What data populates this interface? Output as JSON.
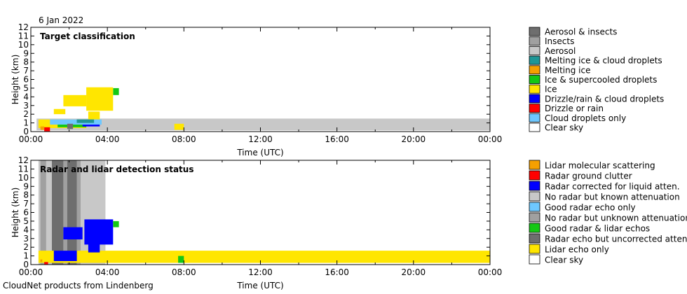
{
  "date_label": "6 Jan 2022",
  "footer": "CloudNet products from Lindenberg",
  "chart_data": [
    {
      "type": "heatmap",
      "title": "Target classification",
      "xlabel": "Time (UTC)",
      "ylabel": "Height (km)",
      "xlim": [
        "00:00",
        "24:00"
      ],
      "ylim": [
        0,
        12
      ],
      "x_ticks": [
        "00:00",
        "04:00",
        "08:00",
        "12:00",
        "16:00",
        "20:00",
        "00:00"
      ],
      "y_ticks": [
        0,
        1,
        2,
        3,
        4,
        5,
        6,
        7,
        8,
        9,
        10,
        11,
        12
      ],
      "legend": [
        {
          "label": "Aerosol & insects",
          "color": "#6e6e6e"
        },
        {
          "label": "Insects",
          "color": "#a0a0a0"
        },
        {
          "label": "Aerosol",
          "color": "#c8c8c8"
        },
        {
          "label": "Melting ice & cloud droplets",
          "color": "#1e9696"
        },
        {
          "label": "Melting ice",
          "color": "#f5a000"
        },
        {
          "label": "Ice & supercooled droplets",
          "color": "#14c814"
        },
        {
          "label": "Ice",
          "color": "#ffe600"
        },
        {
          "label": "Drizzle/rain & cloud droplets",
          "color": "#0000ff"
        },
        {
          "label": "Drizzle or rain",
          "color": "#ff0000"
        },
        {
          "label": "Cloud droplets only",
          "color": "#6ec8ff"
        },
        {
          "label": "Clear sky",
          "color": "#ffffff"
        }
      ],
      "regions": [
        {
          "class": "Aerosol",
          "color": "#c8c8c8",
          "t0": 0.3,
          "t1": 24.0,
          "h0": 0.15,
          "h1": 1.5
        },
        {
          "class": "Ice",
          "color": "#ffe600",
          "t0": 2.9,
          "t1": 4.3,
          "h0": 2.4,
          "h1": 5.1
        },
        {
          "class": "Ice",
          "color": "#ffe600",
          "t0": 1.7,
          "t1": 2.9,
          "h0": 2.9,
          "h1": 4.2
        },
        {
          "class": "Ice",
          "color": "#ffe600",
          "t0": 1.2,
          "t1": 1.8,
          "h0": 2.0,
          "h1": 2.6
        },
        {
          "class": "Ice",
          "color": "#ffe600",
          "t0": 3.0,
          "t1": 3.6,
          "h0": 1.4,
          "h1": 2.3
        },
        {
          "class": "Ice",
          "color": "#ffe600",
          "t0": 0.4,
          "t1": 2.9,
          "h0": 0.4,
          "h1": 1.4
        },
        {
          "class": "Ice",
          "color": "#ffe600",
          "t0": 7.5,
          "t1": 8.0,
          "h0": 0.2,
          "h1": 0.9
        },
        {
          "class": "Ice & supercooled droplets",
          "color": "#14c814",
          "t0": 4.3,
          "t1": 4.6,
          "h0": 4.2,
          "h1": 5.0
        },
        {
          "class": "Ice & supercooled droplets",
          "color": "#14c814",
          "t0": 1.4,
          "t1": 2.9,
          "h0": 0.5,
          "h1": 1.3
        },
        {
          "class": "Drizzle or rain",
          "color": "#ff0000",
          "t0": 0.7,
          "t1": 1.0,
          "h0": 0.0,
          "h1": 0.5
        },
        {
          "class": "Drizzle/rain & cloud droplets",
          "color": "#0000ff",
          "t0": 2.7,
          "t1": 3.6,
          "h0": 0.6,
          "h1": 1.3
        },
        {
          "class": "Cloud droplets only",
          "color": "#6ec8ff",
          "t0": 1.0,
          "t1": 3.7,
          "h0": 0.8,
          "h1": 1.4
        },
        {
          "class": "Melting ice & cloud droplets",
          "color": "#1e9696",
          "t0": 2.4,
          "t1": 3.3,
          "h0": 1.0,
          "h1": 1.4
        },
        {
          "class": "Melting ice",
          "color": "#f5a000",
          "t0": 0.5,
          "t1": 0.7,
          "h0": 0.2,
          "h1": 0.6
        },
        {
          "class": "Aerosol & insects",
          "color": "#6e6e6e",
          "t0": 1.9,
          "t1": 2.2,
          "h0": 0.3,
          "h1": 0.9
        }
      ]
    },
    {
      "type": "heatmap",
      "title": "Radar and lidar detection status",
      "xlabel": "Time (UTC)",
      "ylabel": "Height (km)",
      "xlim": [
        "00:00",
        "24:00"
      ],
      "ylim": [
        0,
        12
      ],
      "x_ticks": [
        "00:00",
        "04:00",
        "08:00",
        "12:00",
        "16:00",
        "20:00",
        "00:00"
      ],
      "y_ticks": [
        0,
        1,
        2,
        3,
        4,
        5,
        6,
        7,
        8,
        9,
        10,
        11,
        12
      ],
      "legend": [
        {
          "label": "Lidar molecular scattering",
          "color": "#f5a000"
        },
        {
          "label": "Radar ground clutter",
          "color": "#ff0000"
        },
        {
          "label": "Radar corrected for liquid atten.",
          "color": "#0000ff"
        },
        {
          "label": "No radar but known attenuation",
          "color": "#c8c8c8"
        },
        {
          "label": "Good radar echo only",
          "color": "#6ec8ff"
        },
        {
          "label": "No radar but unknown attenuation",
          "color": "#a0a0a0"
        },
        {
          "label": "Good radar & lidar echos",
          "color": "#14c814"
        },
        {
          "label": "Radar echo but uncorrected atten.",
          "color": "#6e6e6e"
        },
        {
          "label": "Lidar echo only",
          "color": "#ffe600"
        },
        {
          "label": "Clear sky",
          "color": "#ffffff"
        }
      ],
      "regions": [
        {
          "class": "No radar but known attenuation",
          "color": "#c8c8c8",
          "t0": 0.4,
          "t1": 3.9,
          "h0": 0.0,
          "h1": 12.0
        },
        {
          "class": "No radar but unknown attenuation",
          "color": "#a0a0a0",
          "t0": 0.5,
          "t1": 0.8,
          "h0": 0.0,
          "h1": 12.0
        },
        {
          "class": "Radar echo but uncorrected atten.",
          "color": "#6e6e6e",
          "t0": 1.1,
          "t1": 1.7,
          "h0": 0.0,
          "h1": 12.0
        },
        {
          "class": "No radar but unknown attenuation",
          "color": "#a0a0a0",
          "t0": 1.7,
          "t1": 1.9,
          "h0": 0.0,
          "h1": 12.0
        },
        {
          "class": "Radar echo but uncorrected atten.",
          "color": "#6e6e6e",
          "t0": 1.9,
          "t1": 2.4,
          "h0": 0.0,
          "h1": 12.0
        },
        {
          "class": "No radar but unknown attenuation",
          "color": "#a0a0a0",
          "t0": 2.4,
          "t1": 2.6,
          "h0": 0.0,
          "h1": 12.0
        },
        {
          "class": "Lidar echo only",
          "color": "#ffe600",
          "t0": 0.4,
          "t1": 24.0,
          "h0": 0.2,
          "h1": 1.6
        },
        {
          "class": "Radar corrected for liquid atten.",
          "color": "#0000ff",
          "t0": 2.8,
          "t1": 4.3,
          "h0": 2.3,
          "h1": 5.2
        },
        {
          "class": "Radar corrected for liquid atten.",
          "color": "#0000ff",
          "t0": 1.7,
          "t1": 2.7,
          "h0": 2.9,
          "h1": 4.3
        },
        {
          "class": "Radar corrected for liquid atten.",
          "color": "#0000ff",
          "t0": 3.0,
          "t1": 3.6,
          "h0": 1.4,
          "h1": 2.4
        },
        {
          "class": "Radar corrected for liquid atten.",
          "color": "#0000ff",
          "t0": 1.2,
          "t1": 2.4,
          "h0": 0.4,
          "h1": 1.6
        },
        {
          "class": "Good radar & lidar echos",
          "color": "#14c814",
          "t0": 4.3,
          "t1": 4.6,
          "h0": 4.3,
          "h1": 5.0
        },
        {
          "class": "Good radar & lidar echos",
          "color": "#14c814",
          "t0": 7.7,
          "t1": 8.0,
          "h0": 0.2,
          "h1": 1.0
        },
        {
          "class": "Radar ground clutter",
          "color": "#ff0000",
          "t0": 0.7,
          "t1": 0.9,
          "h0": 0.0,
          "h1": 0.3
        },
        {
          "class": "Lidar molecular scattering",
          "color": "#f5a000",
          "t0": 0.5,
          "t1": 0.6,
          "h0": 0.3,
          "h1": 0.6
        }
      ]
    }
  ]
}
